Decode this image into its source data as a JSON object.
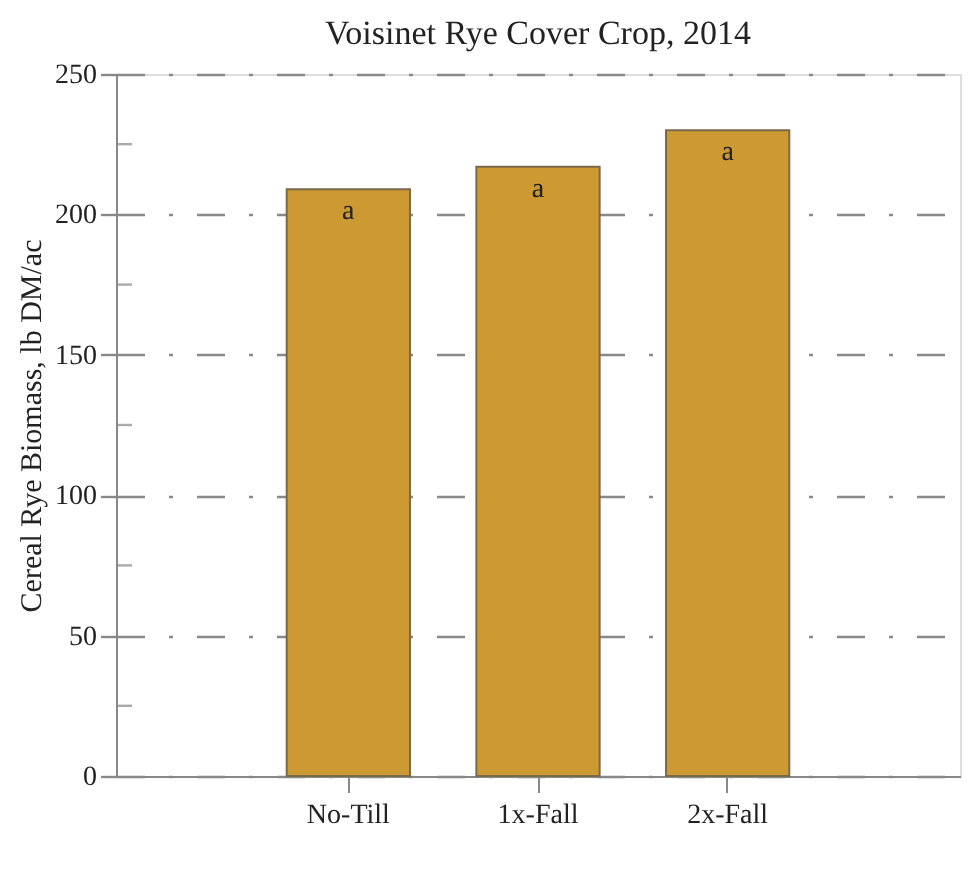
{
  "chart_data": {
    "type": "bar",
    "title": "Voisinet Rye Cover Crop, 2014",
    "ylabel": "Cereal Rye Biomass, lb DM/ac",
    "categories": [
      "No-Till",
      "1x-Fall",
      "2x-Fall"
    ],
    "values": [
      209,
      217,
      230
    ],
    "color": "#cc9933",
    "ylim": [
      0,
      250
    ],
    "yticks": [
      0,
      {
        "value": 25,
        "label": null
      },
      50,
      {
        "value": 75,
        "label": null
      },
      100,
      {
        "value": 125,
        "label": null
      },
      150,
      {
        "value": 175,
        "label": null
      },
      200,
      {
        "value": 225,
        "label": null
      },
      250
    ],
    "grid": "y",
    "annotations": [
      {
        "text": "a",
        "x": "No-Till",
        "y": 209
      },
      {
        "text": "a",
        "x": "1x-Fall",
        "y": 217
      },
      {
        "text": "a",
        "x": "2x-Fall",
        "y": 230
      }
    ]
  }
}
